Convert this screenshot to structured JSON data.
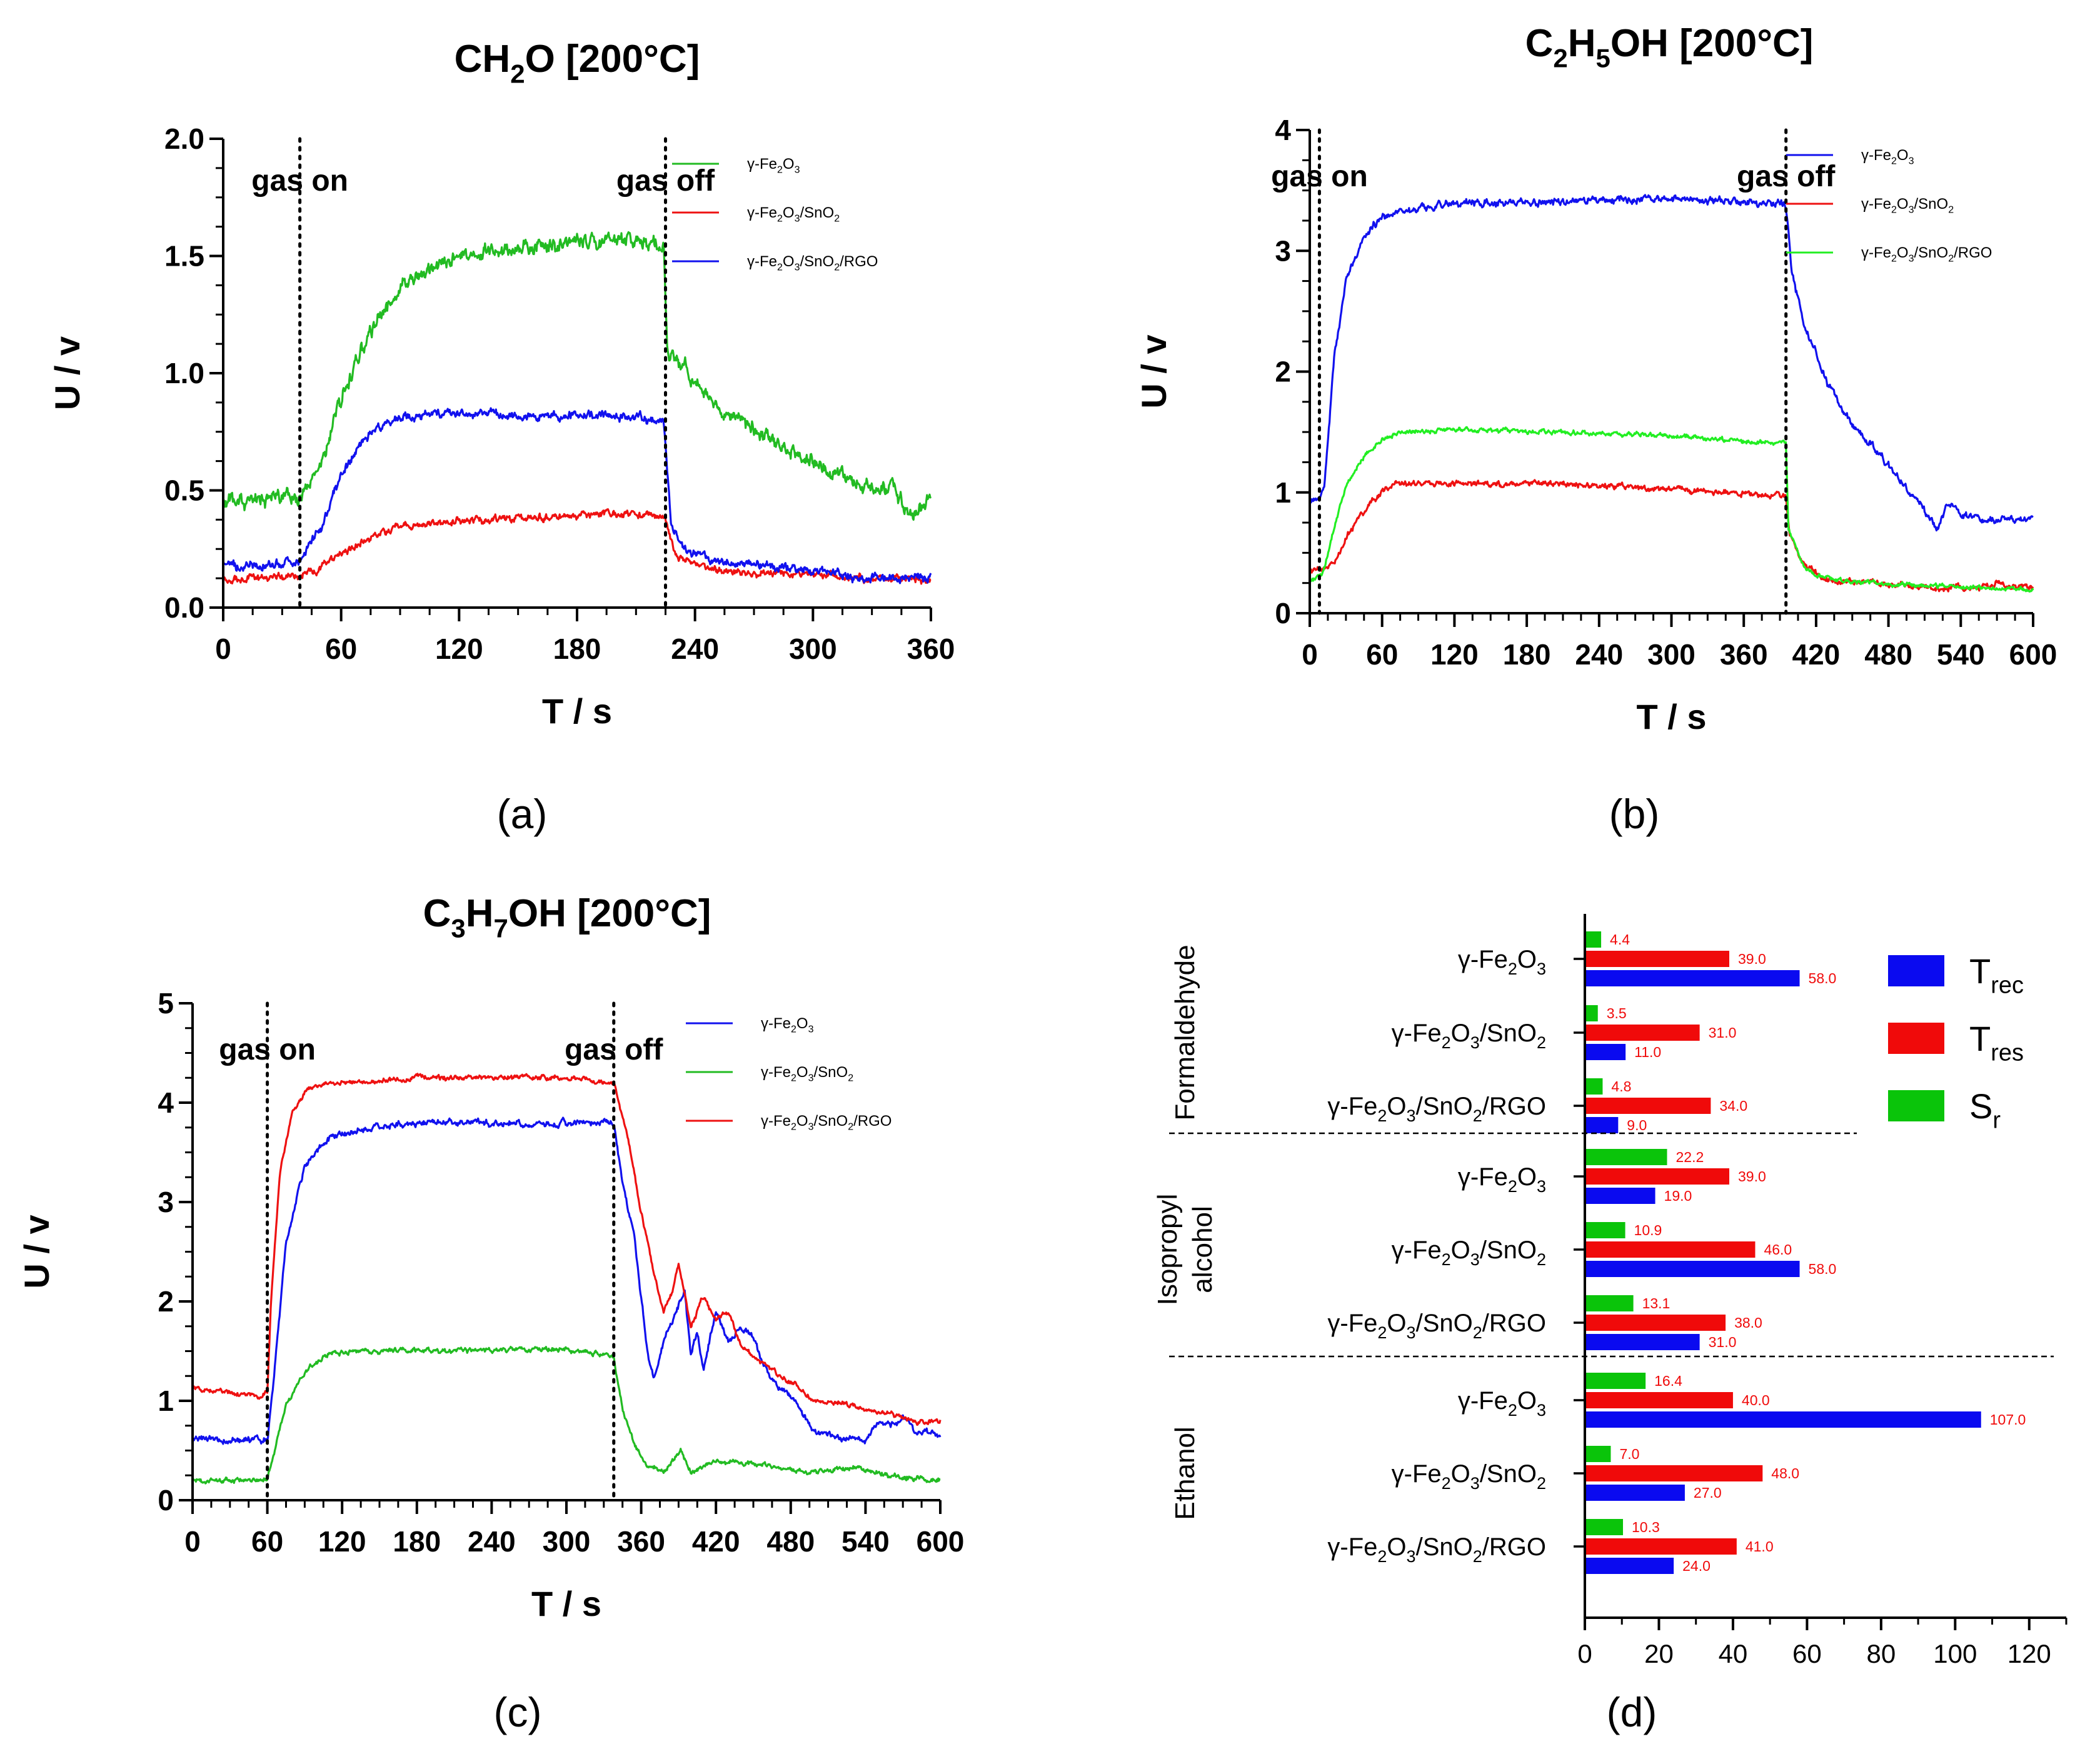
{
  "panel_labels": [
    "(a)",
    "(b)",
    "(c)",
    "(d)"
  ],
  "chart_data": [
    {
      "id": "a",
      "type": "line",
      "title": "CH2O [200°C]",
      "title_parts": {
        "pre": "CH",
        "sub": "2",
        "post": "O [200°C]"
      },
      "xlabel": "T / s",
      "ylabel": "U / v",
      "xlim": [
        0,
        360
      ],
      "ylim": [
        0,
        2.0
      ],
      "xticks": [
        0,
        60,
        120,
        180,
        240,
        300,
        360
      ],
      "yticks": [
        0.0,
        0.5,
        1.0,
        1.5,
        2.0
      ],
      "ytick_labels": [
        "0.0",
        "0.5",
        "1.0",
        "1.5",
        "2.0"
      ],
      "gas_on": 39,
      "gas_off": 225,
      "annotations": {
        "on": "gas on",
        "off": "gas off"
      },
      "legend_position": "top-right",
      "series": [
        {
          "name": "γ-Fe2O3",
          "color": "#22bb22",
          "noise": 0.025,
          "x": [
            0,
            30,
            39,
            50,
            60,
            75,
            90,
            105,
            120,
            150,
            180,
            200,
            220,
            224,
            226,
            235,
            250,
            270,
            290,
            310,
            330,
            340,
            350,
            360
          ],
          "y": [
            0.46,
            0.46,
            0.47,
            0.62,
            0.9,
            1.18,
            1.35,
            1.44,
            1.49,
            1.53,
            1.56,
            1.57,
            1.56,
            1.55,
            1.09,
            1.02,
            0.86,
            0.76,
            0.66,
            0.58,
            0.5,
            0.52,
            0.4,
            0.46
          ]
        },
        {
          "name": "γ-Fe2O3/SnO2",
          "color": "#ee1111",
          "noise": 0.012,
          "x": [
            0,
            30,
            39,
            50,
            60,
            75,
            90,
            120,
            150,
            180,
            200,
            220,
            225,
            230,
            240,
            260,
            300,
            330,
            360
          ],
          "y": [
            0.12,
            0.13,
            0.14,
            0.17,
            0.23,
            0.3,
            0.35,
            0.37,
            0.38,
            0.39,
            0.4,
            0.39,
            0.38,
            0.22,
            0.18,
            0.15,
            0.14,
            0.12,
            0.12
          ]
        },
        {
          "name": "γ-Fe2O3/SnO2/RGO",
          "color": "#1111ee",
          "noise": 0.015,
          "x": [
            0,
            30,
            39,
            50,
            60,
            75,
            90,
            105,
            120,
            150,
            180,
            200,
            220,
            224,
            228,
            235,
            250,
            280,
            300,
            330,
            360
          ],
          "y": [
            0.18,
            0.18,
            0.2,
            0.34,
            0.57,
            0.75,
            0.81,
            0.83,
            0.83,
            0.82,
            0.82,
            0.82,
            0.8,
            0.78,
            0.36,
            0.25,
            0.2,
            0.18,
            0.16,
            0.12,
            0.13
          ]
        }
      ]
    },
    {
      "id": "b",
      "type": "line",
      "title": "C2H5OH [200°C]",
      "title_parts": {
        "pre": "C",
        "sub": "2",
        "mid": "H",
        "sub2": "5",
        "post": "OH [200°C]"
      },
      "xlabel": "T / s",
      "ylabel": "U / v",
      "xlim": [
        0,
        600
      ],
      "ylim": [
        0,
        4
      ],
      "xticks": [
        0,
        60,
        120,
        180,
        240,
        300,
        360,
        420,
        480,
        540,
        600
      ],
      "yticks": [
        0,
        1,
        2,
        3,
        4
      ],
      "ytick_labels": [
        "0",
        "1",
        "2",
        "3",
        "4"
      ],
      "gas_on": 8,
      "gas_off": 395,
      "annotations": {
        "on": "gas on",
        "off": "gas off"
      },
      "legend_position": "top-right",
      "series": [
        {
          "name": "γ-Fe2O3",
          "color": "#1111ee",
          "noise": 0.025,
          "x": [
            0,
            8,
            12,
            20,
            30,
            45,
            60,
            80,
            100,
            120,
            200,
            300,
            360,
            390,
            395,
            400,
            410,
            430,
            450,
            470,
            490,
            510,
            520,
            530,
            540,
            560,
            600
          ],
          "y": [
            0.92,
            0.95,
            1.05,
            2.1,
            2.75,
            3.12,
            3.28,
            3.34,
            3.37,
            3.39,
            3.41,
            3.44,
            3.4,
            3.4,
            3.38,
            2.8,
            2.4,
            1.9,
            1.55,
            1.35,
            1.1,
            0.85,
            0.7,
            0.92,
            0.82,
            0.78,
            0.78
          ]
        },
        {
          "name": "γ-Fe2O3/SnO2",
          "color": "#ee1111",
          "noise": 0.02,
          "x": [
            0,
            10,
            20,
            30,
            45,
            60,
            70,
            120,
            200,
            300,
            360,
            395,
            398,
            410,
            430,
            460,
            500,
            560,
            570,
            600
          ],
          "y": [
            0.35,
            0.37,
            0.42,
            0.62,
            0.85,
            1.02,
            1.08,
            1.07,
            1.07,
            1.03,
            0.99,
            0.97,
            0.65,
            0.4,
            0.28,
            0.25,
            0.22,
            0.21,
            0.25,
            0.21
          ]
        },
        {
          "name": "γ-Fe2O3/SnO2/RGO",
          "color": "#22ee22",
          "noise": 0.015,
          "x": [
            0,
            10,
            20,
            30,
            45,
            60,
            75,
            120,
            200,
            300,
            360,
            395,
            397,
            410,
            430,
            460,
            500,
            560,
            600
          ],
          "y": [
            0.27,
            0.3,
            0.7,
            1.05,
            1.3,
            1.44,
            1.5,
            1.52,
            1.5,
            1.47,
            1.42,
            1.41,
            0.7,
            0.38,
            0.28,
            0.26,
            0.23,
            0.21,
            0.2
          ]
        }
      ]
    },
    {
      "id": "c",
      "type": "line",
      "title": "C3H7OH [200°C]",
      "title_parts": {
        "pre": "C",
        "sub": "3",
        "mid": "H",
        "sub2": "7",
        "post": "OH [200°C]"
      },
      "xlabel": "T / s",
      "ylabel": "U / v",
      "xlim": [
        0,
        600
      ],
      "ylim": [
        0,
        5
      ],
      "xticks": [
        0,
        60,
        120,
        180,
        240,
        300,
        360,
        420,
        480,
        540,
        600
      ],
      "yticks": [
        0,
        1,
        2,
        3,
        4,
        5
      ],
      "ytick_labels": [
        "0",
        "1",
        "2",
        "3",
        "4",
        "5"
      ],
      "gas_on": 60,
      "gas_off": 338,
      "annotations": {
        "on": "gas on",
        "off": "gas off"
      },
      "legend_position": "top-right",
      "series": [
        {
          "name": "γ-Fe2O3",
          "color": "#1111ee",
          "noise": 0.025,
          "x": [
            0,
            55,
            60,
            65,
            75,
            90,
            110,
            140,
            180,
            240,
            300,
            338,
            345,
            355,
            365,
            370,
            378,
            385,
            395,
            400,
            405,
            410,
            420,
            430,
            440,
            450,
            460,
            470,
            480,
            490,
            500,
            520,
            540,
            550,
            560,
            570,
            580,
            590,
            600
          ],
          "y": [
            0.62,
            0.6,
            0.62,
            1.2,
            2.6,
            3.35,
            3.65,
            3.75,
            3.8,
            3.8,
            3.8,
            3.8,
            3.2,
            2.6,
            1.5,
            1.2,
            1.6,
            1.8,
            2.1,
            1.45,
            1.7,
            1.3,
            1.9,
            1.6,
            1.75,
            1.65,
            1.3,
            1.15,
            1.05,
            0.85,
            0.7,
            0.62,
            0.6,
            0.8,
            0.75,
            0.85,
            0.7,
            0.68,
            0.65
          ]
        },
        {
          "name": "γ-Fe2O3/SnO2",
          "color": "#22bb22",
          "noise": 0.02,
          "x": [
            0,
            55,
            60,
            65,
            75,
            90,
            110,
            140,
            200,
            300,
            338,
            345,
            355,
            365,
            380,
            392,
            400,
            420,
            460,
            500,
            530,
            560,
            600
          ],
          "y": [
            0.2,
            0.2,
            0.22,
            0.45,
            0.95,
            1.3,
            1.48,
            1.5,
            1.5,
            1.52,
            1.45,
            0.9,
            0.55,
            0.35,
            0.3,
            0.5,
            0.28,
            0.4,
            0.35,
            0.28,
            0.32,
            0.25,
            0.2
          ]
        },
        {
          "name": "γ-Fe2O3/SnO2/RGO",
          "color": "#ee1111",
          "noise": 0.02,
          "x": [
            0,
            55,
            60,
            63,
            70,
            80,
            90,
            100,
            120,
            180,
            240,
            300,
            338,
            350,
            360,
            370,
            378,
            385,
            390,
            395,
            400,
            410,
            420,
            430,
            440,
            460,
            480,
            500,
            520,
            540,
            560,
            570,
            580,
            600
          ],
          "y": [
            1.12,
            1.05,
            1.1,
            2.0,
            3.3,
            3.9,
            4.1,
            4.18,
            4.2,
            4.25,
            4.25,
            4.25,
            4.2,
            3.6,
            2.9,
            2.3,
            1.9,
            2.1,
            2.4,
            2.05,
            1.75,
            2.05,
            1.8,
            1.9,
            1.55,
            1.35,
            1.2,
            1.0,
            0.98,
            0.92,
            0.88,
            0.82,
            0.78,
            0.8
          ]
        }
      ]
    },
    {
      "id": "d",
      "type": "bar",
      "orientation": "horizontal",
      "xlim": [
        0,
        130
      ],
      "xticks": [
        0,
        20,
        40,
        60,
        80,
        100,
        120
      ],
      "legend_position": "top-right",
      "legend": [
        {
          "key": "Trec",
          "base": "T",
          "sub": "rec",
          "color": "#0a0af0"
        },
        {
          "key": "Tres",
          "base": "T",
          "sub": "res",
          "color": "#f00a0a"
        },
        {
          "key": "Sr",
          "base": "S",
          "sub": "r",
          "color": "#0ac40a"
        }
      ],
      "groups": [
        {
          "name": "Formaldehyde",
          "name_lines": [
            "Formaldehyde"
          ],
          "materials": [
            {
              "label": "γ-Fe2O3",
              "Sr": 4.4,
              "Tres": 39.0,
              "Trec": 58.0,
              "Sr_label": "4.4",
              "Tres_label": "39.0",
              "Trec_label": "58.0"
            },
            {
              "label": "γ-Fe2O3/SnO2",
              "Sr": 3.5,
              "Tres": 31.0,
              "Trec": 11.0,
              "Sr_label": "3.5",
              "Tres_label": "31.0",
              "Trec_label": "11.0"
            },
            {
              "label": "γ-Fe2O3/SnO2/RGO",
              "Sr": 4.8,
              "Tres": 34.0,
              "Trec": 9.0,
              "Sr_label": "4.8",
              "Tres_label": "34.0",
              "Trec_label": "9.0"
            }
          ]
        },
        {
          "name": "Isopropyl alcohol",
          "name_lines": [
            "Isopropyl",
            "alcohol"
          ],
          "materials": [
            {
              "label": "γ-Fe2O3",
              "Sr": 22.2,
              "Tres": 39.0,
              "Trec": 19.0,
              "Sr_label": "22.2",
              "Tres_label": "39.0",
              "Trec_label": "19.0"
            },
            {
              "label": "γ-Fe2O3/SnO2",
              "Sr": 10.9,
              "Tres": 46.0,
              "Trec": 58.0,
              "Sr_label": "10.9",
              "Tres_label": "46.0",
              "Trec_label": "58.0"
            },
            {
              "label": "γ-Fe2O3/SnO2/RGO",
              "Sr": 13.1,
              "Tres": 38.0,
              "Trec": 31.0,
              "Sr_label": "13.1",
              "Tres_label": "38.0",
              "Trec_label": "31.0"
            }
          ]
        },
        {
          "name": "Ethanol",
          "name_lines": [
            "Ethanol"
          ],
          "materials": [
            {
              "label": "γ-Fe2O3",
              "Sr": 16.4,
              "Tres": 40.0,
              "Trec": 107.0,
              "Sr_label": "16.4",
              "Tres_label": "40.0",
              "Trec_label": "107.0"
            },
            {
              "label": "γ-Fe2O3/SnO2",
              "Sr": 7.0,
              "Tres": 48.0,
              "Trec": 27.0,
              "Sr_label": "7.0",
              "Tres_label": "48.0",
              "Trec_label": "27.0"
            },
            {
              "label": "γ-Fe2O3/SnO2/RGO",
              "Sr": 10.3,
              "Tres": 41.0,
              "Trec": 24.0,
              "Sr_label": "10.3",
              "Tres_label": "41.0",
              "Trec_label": "24.0"
            }
          ]
        }
      ]
    }
  ]
}
